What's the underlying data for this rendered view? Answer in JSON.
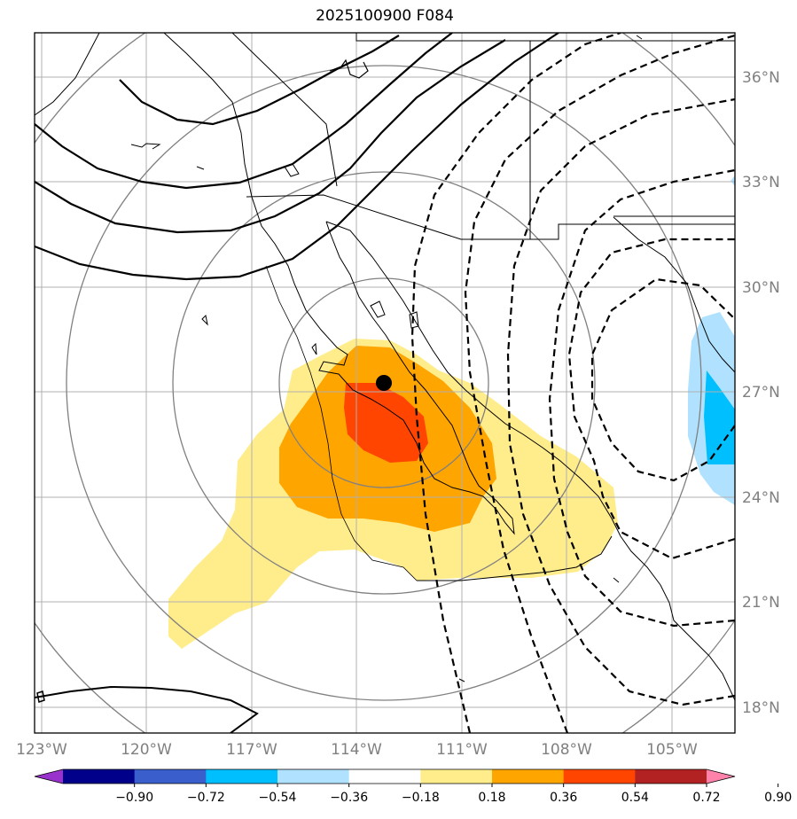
{
  "title": "2025100900 F084",
  "lat_labels": [
    "36°N",
    "33°N",
    "30°N",
    "27°N",
    "24°N",
    "21°N",
    "18°N"
  ],
  "lon_labels": [
    "123°W",
    "120°W",
    "117°W",
    "114°W",
    "111°W",
    "108°W",
    "105°W"
  ],
  "colorbar": {
    "colors": [
      "#9932CC",
      "#00008B",
      "#3A5FCD",
      "#00BFFF",
      "#B0E2FF",
      "#FFFFFF",
      "#FFEC8B",
      "#FFA500",
      "#FF4500",
      "#B22222",
      "#FF82AB"
    ],
    "tick_labels": [
      "−0.90",
      "−0.72",
      "−0.54",
      "−0.36",
      "−0.18",
      "0.18",
      "0.36",
      "0.54",
      "0.72",
      "0.90"
    ]
  },
  "center_marker": {
    "lon": -113.1,
    "lat": 27.2
  }
}
